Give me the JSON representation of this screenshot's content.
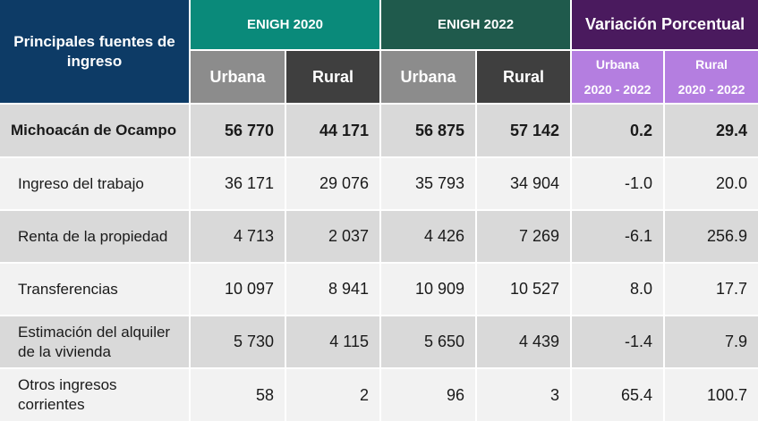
{
  "header": {
    "title": "Principales fuentes de ingreso",
    "enigh2020": "ENIGH 2020",
    "enigh2022": "ENIGH 2022",
    "variacion": "Variación Porcentual",
    "urbana": "Urbana",
    "rural": "Rural",
    "var_urbana": "Urbana",
    "var_rural": "Rural",
    "var_period": "2020 - 2022"
  },
  "rows": [
    {
      "label": "Michoacán de Ocampo",
      "u2020": "56 770",
      "r2020": "44 171",
      "u2022": "56 875",
      "r2022": "57 142",
      "vu": "0.2",
      "vr": "29.4"
    },
    {
      "label": "Ingreso del trabajo",
      "u2020": "36 171",
      "r2020": "29 076",
      "u2022": "35 793",
      "r2022": "34 904",
      "vu": "-1.0",
      "vr": "20.0"
    },
    {
      "label": "Renta de la propiedad",
      "u2020": "4 713",
      "r2020": "2 037",
      "u2022": "4 426",
      "r2022": "7 269",
      "vu": "-6.1",
      "vr": "256.9"
    },
    {
      "label": "Transferencias",
      "u2020": "10 097",
      "r2020": "8 941",
      "u2022": "10 909",
      "r2022": "10 527",
      "vu": "8.0",
      "vr": "17.7"
    },
    {
      "label": "Estimación del alquiler de la vivienda",
      "u2020": "5 730",
      "r2020": "4 115",
      "u2022": "5 650",
      "r2022": "4 439",
      "vu": "-1.4",
      "vr": "7.9"
    },
    {
      "label": "Otros ingresos corrientes",
      "u2020": "58",
      "r2020": "2",
      "u2022": "96",
      "r2022": "3",
      "vu": "65.4",
      "vr": "100.7"
    }
  ]
}
